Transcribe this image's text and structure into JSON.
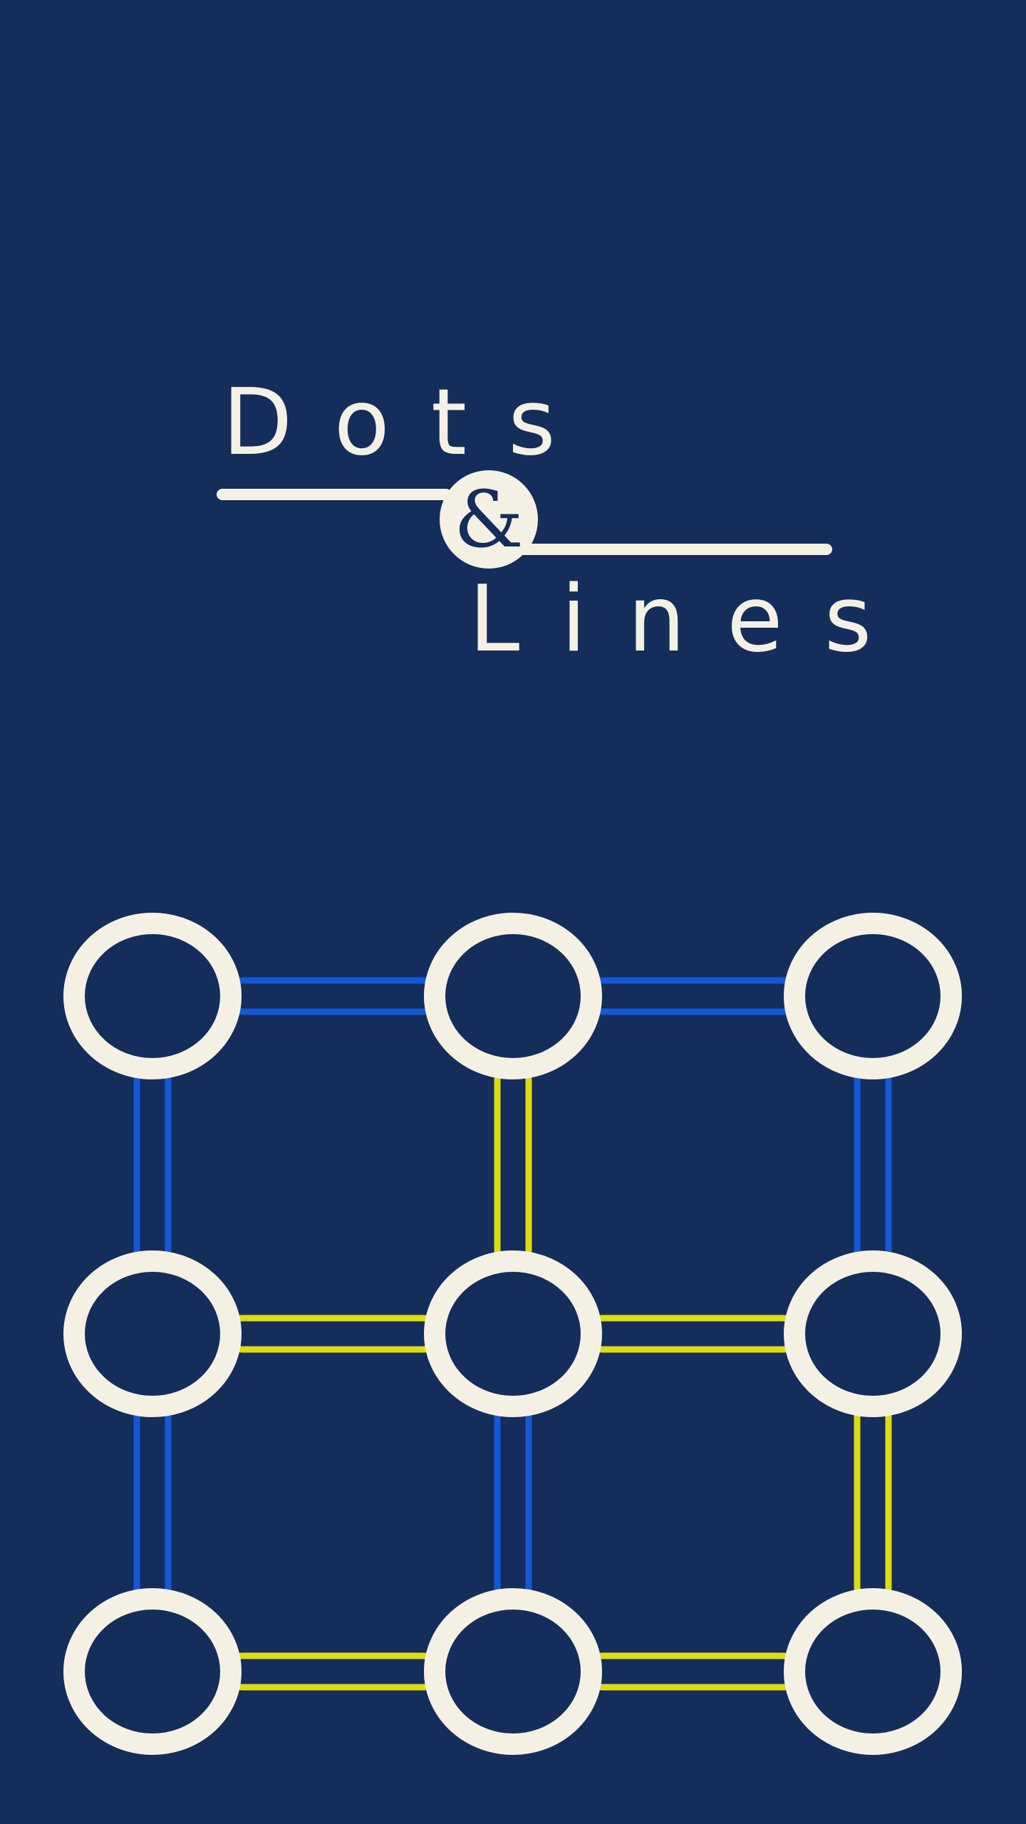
{
  "game": {
    "title_word_1": "Dots",
    "title_ampersand": "&",
    "title_word_2": "Lines"
  },
  "colors": {
    "background": "#142d5b",
    "dot": "#f4f1e4",
    "player_blue": "#1558d6",
    "player_yellow": "#dcdc12"
  },
  "board": {
    "rows": 3,
    "cols": 3,
    "horizontal_edges": [
      {
        "row": 0,
        "col": 0,
        "owner": "blue"
      },
      {
        "row": 0,
        "col": 1,
        "owner": "blue"
      },
      {
        "row": 1,
        "col": 0,
        "owner": "yellow"
      },
      {
        "row": 1,
        "col": 1,
        "owner": "yellow"
      },
      {
        "row": 2,
        "col": 0,
        "owner": "yellow"
      },
      {
        "row": 2,
        "col": 1,
        "owner": "yellow"
      }
    ],
    "vertical_edges": [
      {
        "row": 0,
        "col": 0,
        "owner": "blue"
      },
      {
        "row": 0,
        "col": 1,
        "owner": "yellow"
      },
      {
        "row": 0,
        "col": 2,
        "owner": "blue"
      },
      {
        "row": 1,
        "col": 0,
        "owner": "blue"
      },
      {
        "row": 1,
        "col": 1,
        "owner": "blue"
      },
      {
        "row": 1,
        "col": 2,
        "owner": "yellow"
      }
    ]
  }
}
